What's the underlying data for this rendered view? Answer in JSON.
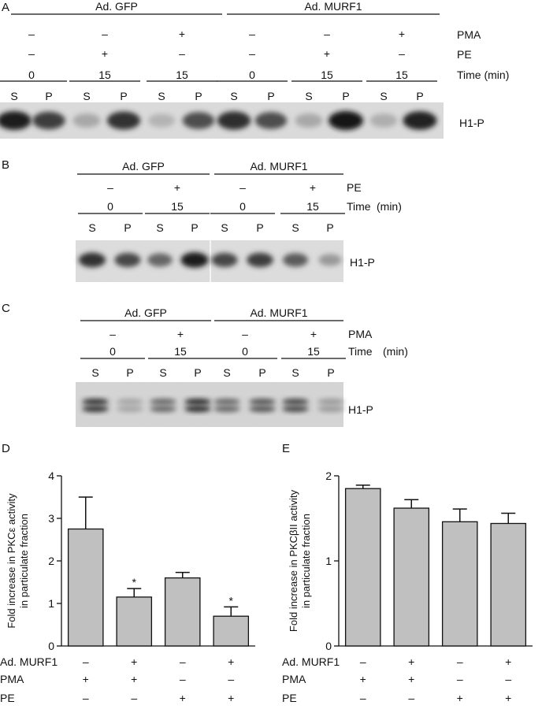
{
  "panel_labels": {
    "A": "A",
    "B": "B",
    "C": "C",
    "D": "D",
    "E": "E"
  },
  "blot_a": {
    "groups": [
      "Ad. GFP",
      "Ad. MURF1"
    ],
    "row_labels": {
      "pma": "PMA",
      "pe": "PE",
      "time": "Time (min)"
    },
    "pma": [
      "–",
      "–",
      "+",
      "–",
      "–",
      "+"
    ],
    "pe": [
      "–",
      "+",
      "–",
      "–",
      "+",
      "–"
    ],
    "time": [
      "0",
      "15",
      "15",
      "0",
      "15",
      "15"
    ],
    "lanes": [
      "S",
      "P",
      "S",
      "P",
      "S",
      "P",
      "S",
      "P",
      "S",
      "P",
      "S",
      "P"
    ],
    "band_label": "H1-P",
    "band_intensity": [
      0.95,
      0.8,
      0.28,
      0.85,
      0.22,
      0.72,
      0.88,
      0.72,
      0.28,
      1.0,
      0.25,
      0.92
    ]
  },
  "blot_b": {
    "groups": [
      "Ad. GFP",
      "Ad. MURF1"
    ],
    "row_labels": {
      "pe": "PE",
      "time": "Time",
      "time_unit": "(min)"
    },
    "pe": [
      "–",
      "+",
      "–",
      "+"
    ],
    "time": [
      "0",
      "15",
      "0",
      "15"
    ],
    "lanes": [
      "S",
      "P",
      "S",
      "P",
      "S",
      "P",
      "S",
      "P"
    ],
    "band_label": "H1-P",
    "band_intensity": [
      0.85,
      0.75,
      0.6,
      0.95,
      0.75,
      0.8,
      0.65,
      0.35
    ]
  },
  "blot_c": {
    "groups": [
      "Ad. GFP",
      "Ad. MURF1"
    ],
    "row_labels": {
      "pma": "PMA",
      "time": "Time",
      "time_unit": "(min)"
    },
    "pma": [
      "–",
      "+",
      "–",
      "+"
    ],
    "time": [
      "0",
      "15",
      "0",
      "15"
    ],
    "lanes": [
      "S",
      "P",
      "S",
      "P",
      "S",
      "P",
      "S",
      "P"
    ],
    "band_label": "H1-P",
    "band_intensity": [
      0.85,
      0.3,
      0.6,
      0.9,
      0.6,
      0.7,
      0.75,
      0.35
    ]
  },
  "chart_data": [
    {
      "type": "bar",
      "panel": "D",
      "ylabel": [
        "Fold increase in PKCε activity",
        "in particulate fraction"
      ],
      "ylim": [
        0,
        4
      ],
      "yticks": [
        "0",
        "1",
        "2",
        "3",
        "4"
      ],
      "values": [
        2.75,
        1.15,
        1.6,
        0.7
      ],
      "errors": [
        0.75,
        0.2,
        0.13,
        0.22
      ],
      "significance": [
        "",
        "*",
        "",
        "*"
      ],
      "bar_color": "#c0c0c0",
      "conditions": [
        {
          "label": "Ad. MURF1",
          "values": [
            "–",
            "+",
            "–",
            "+"
          ]
        },
        {
          "label": "PMA",
          "values": [
            "+",
            "+",
            "–",
            "–"
          ]
        },
        {
          "label": "PE",
          "values": [
            "–",
            "–",
            "+",
            "+"
          ]
        }
      ]
    },
    {
      "type": "bar",
      "panel": "E",
      "ylabel": [
        "Fold increase in PKCβII activity",
        "in particulate fraction"
      ],
      "ylim": [
        0,
        2
      ],
      "yticks": [
        "0",
        "1",
        "2"
      ],
      "values": [
        1.85,
        1.62,
        1.46,
        1.44
      ],
      "errors": [
        0.04,
        0.1,
        0.15,
        0.12
      ],
      "significance": [
        "",
        "",
        "",
        ""
      ],
      "bar_color": "#c0c0c0",
      "conditions": [
        {
          "label": "Ad. MURF1",
          "values": [
            "–",
            "+",
            "–",
            "+"
          ]
        },
        {
          "label": "PMA",
          "values": [
            "+",
            "+",
            "–",
            "–"
          ]
        },
        {
          "label": "PE",
          "values": [
            "–",
            "–",
            "+",
            "+"
          ]
        }
      ]
    }
  ]
}
